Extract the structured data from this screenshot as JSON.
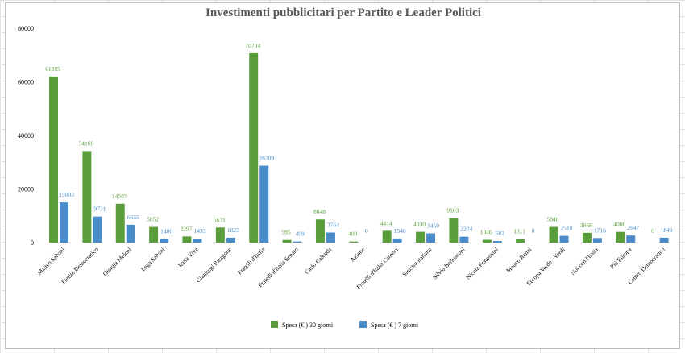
{
  "chart_data": {
    "type": "bar",
    "title": "Investimenti pubblicitari per Partito e Leader Politici",
    "xlabel": "",
    "ylabel": "",
    "ylim": [
      0,
      80000
    ],
    "yticks": [
      0,
      20000,
      40000,
      60000,
      80000
    ],
    "grid": false,
    "legend_position": "bottom",
    "categories": [
      "Matteo Salvini",
      "Partito Democratico",
      "Giorgia Meloni",
      "Lega Salvini",
      "Italia Viva",
      "Gianluigi Paragone",
      "Fratelli d'Italia",
      "Fratelli d'Italia Senato",
      "Carlo Calenda",
      "Azione",
      "Fratelli d'Italia Camera",
      "Sinistra Italiana",
      "Silvio Berlusconi",
      "Nicola Fratoianni",
      "Matteo Renzi",
      "Europa Verde - Verdi",
      "Noi con l'Italia",
      "Più Europa",
      "Centro Democratico"
    ],
    "series": [
      {
        "name": "Spesa (€ ) 30 giorni",
        "color": "#5a9e3c",
        "values": [
          61985,
          34169,
          14507,
          5852,
          2297,
          5631,
          70704,
          985,
          8648,
          400,
          4414,
          4030,
          9103,
          1046,
          1311,
          5848,
          3666,
          4006,
          0
        ],
        "labels": [
          "61985",
          "34169",
          "14507",
          "5852",
          "2297",
          "5631",
          "70704",
          "985",
          "8648",
          "400",
          "4414",
          "4030",
          "9103",
          "1046",
          "1311",
          "5848",
          "3666",
          "4006",
          "0"
        ]
      },
      {
        "name": "Spesa (€ ) 7 giorni",
        "color": "#4a8cc9",
        "values": [
          15003,
          9731,
          6655,
          1400,
          1433,
          1825,
          28709,
          409,
          3764,
          0,
          1540,
          3450,
          2204,
          582,
          0,
          2518,
          1716,
          2647,
          1849
        ],
        "labels": [
          "15003",
          "9731",
          "6655",
          "1400",
          "1433",
          "1825",
          "28709",
          "409",
          "3764",
          "0",
          "1540",
          "3450",
          "2204",
          "582",
          "0",
          "2518",
          "1716",
          "2647",
          "1849"
        ]
      }
    ]
  }
}
